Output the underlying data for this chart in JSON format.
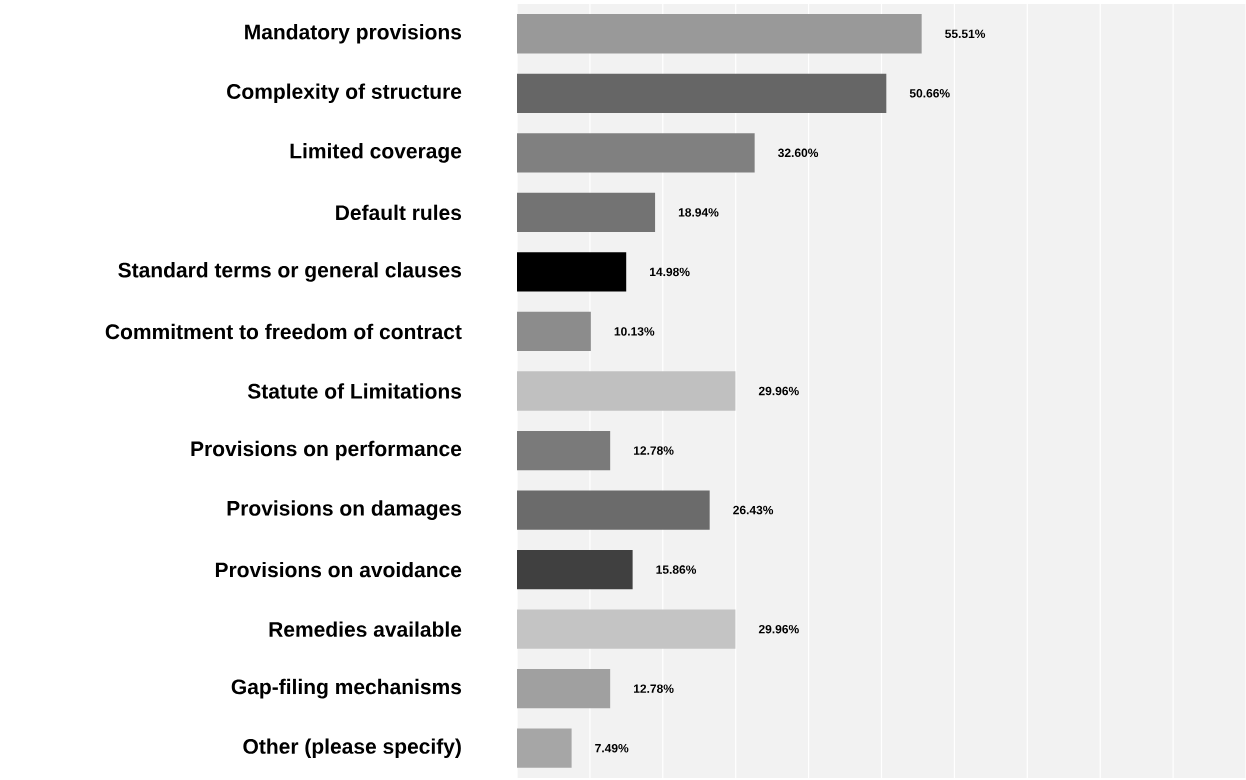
{
  "chart_data": {
    "type": "bar",
    "orientation": "horizontal",
    "categories": [
      "Mandatory provisions",
      "Complexity of structure",
      "Limited coverage",
      "Default rules",
      "Standard terms or general clauses",
      "Commitment to freedom of contract",
      "Statute of Limitations",
      "Provisions on performance",
      "Provisions on damages",
      "Provisions on avoidance",
      "Remedies available",
      "Gap-filing mechanisms",
      "Other (please specify)"
    ],
    "values": [
      55.51,
      50.66,
      32.6,
      18.94,
      14.98,
      10.13,
      29.96,
      12.78,
      26.43,
      15.86,
      29.96,
      12.78,
      7.49
    ],
    "value_labels": [
      "55.51%",
      "50.66%",
      "32.60%",
      "18.94%",
      "14.98%",
      "10.13%",
      "29.96%",
      "12.78%",
      "26.43%",
      "15.86%",
      "29.96%",
      "12.78%",
      "7.49%"
    ],
    "colors": [
      "#999999",
      "#666666",
      "#808080",
      "#737373",
      "#000000",
      "#8c8c8c",
      "#c0c0c0",
      "#7a7a7a",
      "#6b6b6b",
      "#404040",
      "#c4c4c4",
      "#a0a0a0",
      "#a6a6a6"
    ],
    "xlim": [
      0,
      100
    ],
    "xticks": [
      {
        "value": 0,
        "label": null
      },
      {
        "value": 10,
        "label": null
      },
      {
        "value": 20,
        "label": null
      },
      {
        "value": 30,
        "label": null
      },
      {
        "value": 40,
        "label": null
      },
      {
        "value": 50,
        "label": null
      },
      {
        "value": 60,
        "label": null
      },
      {
        "value": 70,
        "label": null
      },
      {
        "value": 80,
        "label": null
      },
      {
        "value": 90,
        "label": null
      },
      {
        "value": 100,
        "label": null
      }
    ],
    "grid": "x",
    "tick_labels": "y"
  }
}
